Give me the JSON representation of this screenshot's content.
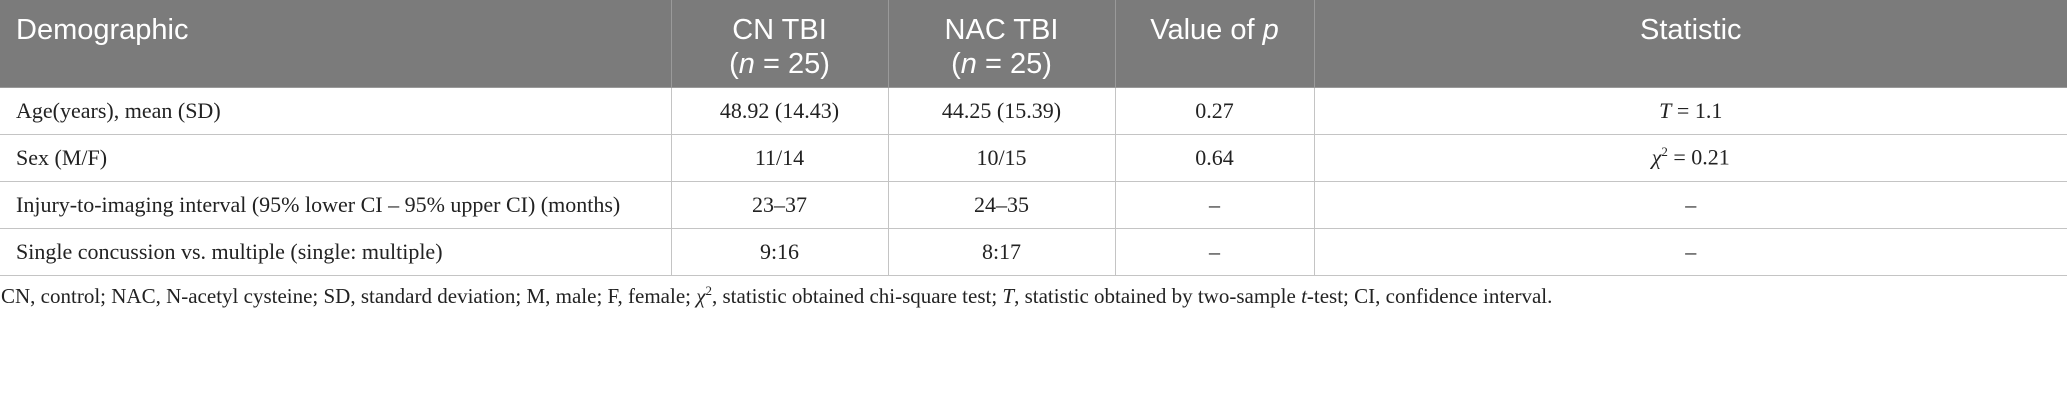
{
  "table": {
    "header": [
      [
        "Demographic"
      ],
      [
        "CN TBI",
        "(",
        "n",
        " = 25)"
      ],
      [
        "NAC TBI",
        "(",
        "n",
        " = 25)"
      ],
      [
        "Value of ",
        "p"
      ],
      [
        "Statistic"
      ]
    ],
    "rows": [
      [
        "Age(years), mean (SD)",
        "48.92 (14.43)",
        "44.25 (15.39)",
        "0.27",
        [
          "T",
          " = 1.1"
        ]
      ],
      [
        "Sex (M/F)",
        "11/14",
        "10/15",
        "0.64",
        [
          "χ",
          "2",
          " = 0.21"
        ]
      ],
      [
        "Injury-to-imaging interval (95% lower CI – 95% upper CI) (months)",
        "23–37",
        "24–35",
        "–",
        "–"
      ],
      [
        "Single concussion vs. multiple (single: multiple)",
        "9:16",
        "8:17",
        "–",
        "–"
      ]
    ]
  },
  "footnote": [
    "CN, control; NAC, N-acetyl cysteine; SD, standard deviation; M, male; F, female; ",
    "χ",
    "2",
    ", statistic obtained chi-square test; ",
    "T",
    ", statistic obtained by two-sample ",
    "t",
    "-test; CI, confidence interval."
  ]
}
